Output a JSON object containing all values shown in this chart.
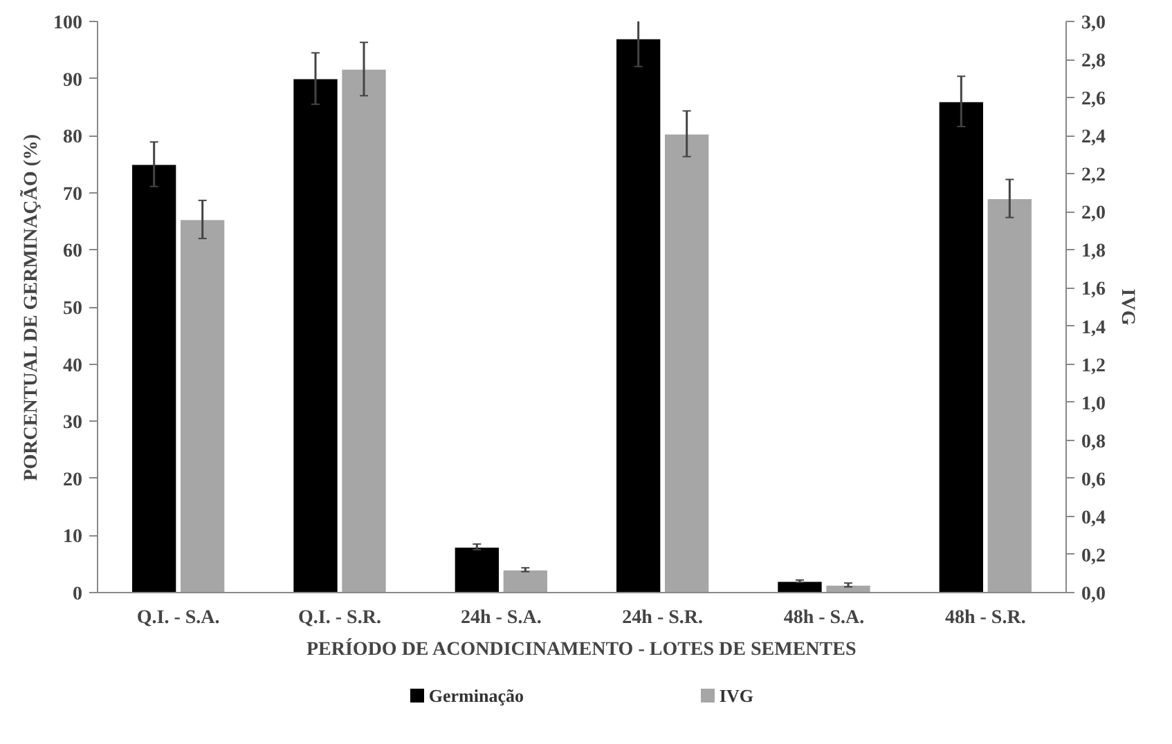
{
  "chart_data": {
    "type": "bar",
    "xlabel": "PERÍODO DE ACONDICINAMENTO - LOTES DE SEMENTES",
    "ylabel": "PORCENTUAL DE GERMINAÇÃO (%)",
    "y2label": "IVG",
    "categories": [
      "Q.I. - S.A.",
      "Q.I. - S.R.",
      "24h - S.A.",
      "24h - S.R.",
      "48h - S.A.",
      "48h - S.R."
    ],
    "series": [
      {
        "name": "Germinação",
        "color": "#000000",
        "values": [
          75,
          90,
          8,
          97,
          2,
          86
        ],
        "errors": [
          3.9,
          4.5,
          0.5,
          4.9,
          0.2,
          4.4
        ]
      },
      {
        "name": "IVG",
        "color": "#a6a6a6",
        "axis": "y2",
        "values": [
          1.96,
          2.75,
          0.12,
          2.41,
          0.04,
          2.07
        ],
        "errors": [
          0.1,
          0.14,
          0.01,
          0.12,
          0.01,
          0.1
        ]
      }
    ],
    "ylim": [
      0,
      100
    ],
    "yticks": [
      0,
      10,
      20,
      30,
      40,
      50,
      60,
      70,
      80,
      90,
      100
    ],
    "y2lim": [
      0,
      3
    ],
    "y2ticks": [
      {
        "value": 0,
        "label": "0,0"
      },
      {
        "value": 0.2,
        "label": "0,2"
      },
      {
        "value": 0.4,
        "label": "0,4"
      },
      {
        "value": 0.6,
        "label": "0,6"
      },
      {
        "value": 0.8,
        "label": "0,8"
      },
      {
        "value": 1.0,
        "label": "1,0"
      },
      {
        "value": 1.2,
        "label": "1,2"
      },
      {
        "value": 1.4,
        "label": "1,4"
      },
      {
        "value": 1.6,
        "label": "1,6"
      },
      {
        "value": 1.8,
        "label": "1,8"
      },
      {
        "value": 2.0,
        "label": "2,0"
      },
      {
        "value": 2.2,
        "label": "2,2"
      },
      {
        "value": 2.4,
        "label": "2,4"
      },
      {
        "value": 2.6,
        "label": "2,6"
      },
      {
        "value": 2.8,
        "label": "2,8"
      },
      {
        "value": 3.0,
        "label": "3,0"
      }
    ],
    "grid": false,
    "legend": "bottom"
  }
}
